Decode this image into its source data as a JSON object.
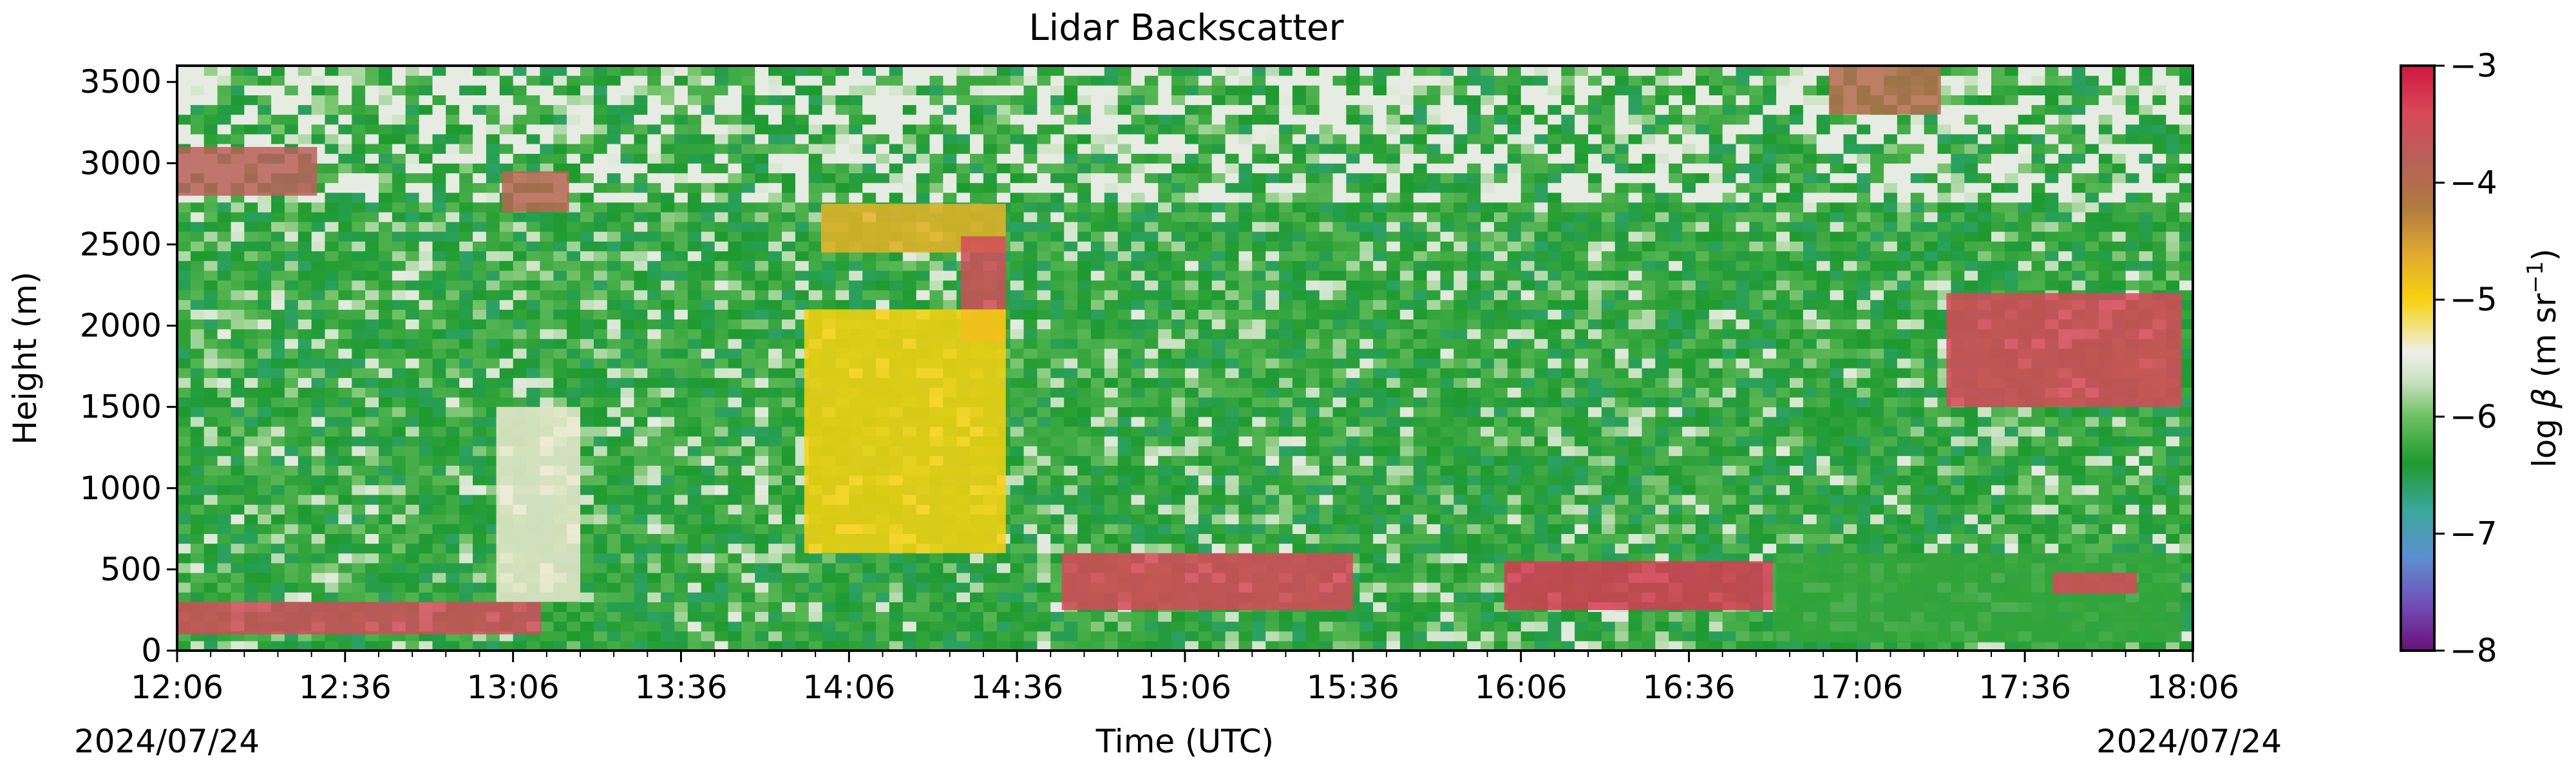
{
  "chart_data": {
    "type": "heatmap",
    "title": "Lidar Backscatter",
    "xlabel": "Time (UTC)",
    "ylabel": "Height (m)",
    "x_tick_labels": [
      "12:06",
      "12:36",
      "13:06",
      "13:36",
      "14:06",
      "14:36",
      "15:06",
      "15:36",
      "16:06",
      "16:36",
      "17:06",
      "17:36",
      "18:06"
    ],
    "x_ticks_minutes": [
      0,
      30,
      60,
      90,
      120,
      150,
      180,
      210,
      240,
      270,
      300,
      330,
      360
    ],
    "x_minor_tick_step_minutes": 6,
    "xlim_minutes": [
      0,
      360
    ],
    "date_left": "2024/07/24",
    "date_right": "2024/07/24",
    "y_ticks": [
      0,
      500,
      1000,
      1500,
      2000,
      2500,
      3000,
      3500
    ],
    "y_tick_labels": [
      "0",
      "500",
      "1000",
      "1500",
      "2000",
      "2500",
      "3000",
      "3500"
    ],
    "ylim": [
      0,
      3600
    ],
    "colorbar": {
      "label_prefix": "log ",
      "label_symbol": "β",
      "label_unit": " (m sr",
      "label_exp": "−1",
      "label_close": ")",
      "range": [
        -8,
        -3
      ],
      "ticks": [
        -8,
        -7,
        -6,
        -5,
        -4,
        -3
      ],
      "tick_labels": [
        "−8",
        "−7",
        "−6",
        "−5",
        "−4",
        "−3"
      ],
      "colors": [
        [
          -8.0,
          "#6a0f7a"
        ],
        [
          -7.6,
          "#7050b8"
        ],
        [
          -7.2,
          "#5c8fd0"
        ],
        [
          -6.8,
          "#3aa89a"
        ],
        [
          -6.4,
          "#1e9a2e"
        ],
        [
          -6.0,
          "#6cc062"
        ],
        [
          -5.7,
          "#c8e2c0"
        ],
        [
          -5.45,
          "#eeeeea"
        ],
        [
          -5.2,
          "#f2e070"
        ],
        [
          -5.0,
          "#f8d210"
        ],
        [
          -4.6,
          "#e0a830"
        ],
        [
          -4.2,
          "#b07840"
        ],
        [
          -3.8,
          "#b86058"
        ],
        [
          -3.4,
          "#d84858"
        ],
        [
          -3.0,
          "#d01840"
        ]
      ]
    },
    "features": [
      {
        "name": "low aerosol/cloud layer",
        "t": [
          0,
          65
        ],
        "h": [
          100,
          300
        ],
        "value": -3.5
      },
      {
        "name": "cloud 3000m early",
        "t": [
          0,
          25
        ],
        "h": [
          2800,
          3100
        ],
        "value": -3.8
      },
      {
        "name": "cloud 2800m 13:06",
        "t": [
          58,
          70
        ],
        "h": [
          2700,
          2950
        ],
        "value": -3.9
      },
      {
        "name": "cloud 2500m 14:06",
        "t": [
          115,
          148
        ],
        "h": [
          2450,
          2750
        ],
        "value": -4.7
      },
      {
        "name": "descending cloud 14:30",
        "t": [
          140,
          148
        ],
        "h": [
          1900,
          2550
        ],
        "value": -3.5
      },
      {
        "name": "aerosol plume 14:06",
        "t": [
          112,
          148
        ],
        "h": [
          600,
          2100
        ],
        "value": -5.0
      },
      {
        "name": "aerosol plume 13:20",
        "t": [
          57,
          72
        ],
        "h": [
          300,
          1500
        ],
        "value": -5.4
      },
      {
        "name": "low cloud 15:00",
        "t": [
          158,
          210
        ],
        "h": [
          250,
          600
        ],
        "value": -3.4
      },
      {
        "name": "low cloud 16:10",
        "t": [
          237,
          285
        ],
        "h": [
          250,
          550
        ],
        "value": -3.3
      },
      {
        "name": "boundary layer 16:40-18:00",
        "t": [
          285,
          358
        ],
        "h": [
          50,
          600
        ],
        "value": -6.3
      },
      {
        "name": "elevated cloud 17:06",
        "t": [
          295,
          315
        ],
        "h": [
          3300,
          3600
        ],
        "value": -4.0
      },
      {
        "name": "cloud layer 17:30",
        "t": [
          316,
          358
        ],
        "h": [
          1500,
          2200
        ],
        "value": -3.4
      },
      {
        "name": "cloud 17:50 low",
        "t": [
          335,
          350
        ],
        "h": [
          350,
          480
        ],
        "value": -3.4
      }
    ]
  }
}
